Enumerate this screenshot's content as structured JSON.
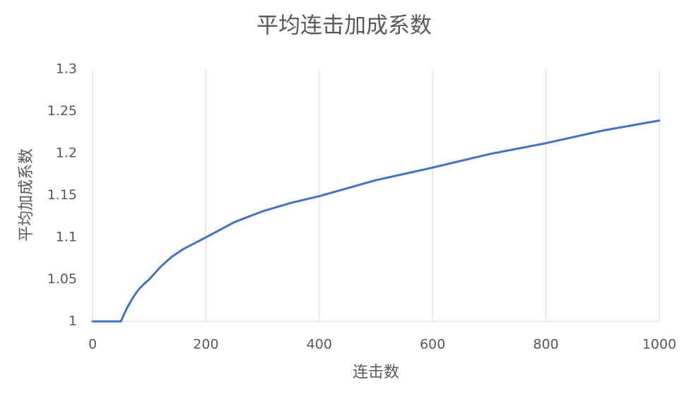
{
  "chart_data": {
    "type": "line",
    "title": "平均连击加成系数",
    "x_label": "连击数",
    "y_label": "平均加成系数",
    "x": [
      0,
      50,
      60,
      70,
      80,
      90,
      100,
      120,
      140,
      160,
      180,
      200,
      250,
      300,
      350,
      400,
      500,
      600,
      700,
      800,
      900,
      1000
    ],
    "values": [
      1,
      1,
      1.015,
      1.027,
      1.037,
      1.044,
      1.05,
      1.065,
      1.077,
      1.086,
      1.093,
      1.1,
      1.118,
      1.131,
      1.141,
      1.149,
      1.168,
      1.183,
      1.199,
      1.212,
      1.227,
      1.239
    ],
    "color": "#4472c4",
    "xlim": [
      0,
      1000
    ],
    "xticks": [
      0,
      200,
      400,
      600,
      800,
      1000
    ],
    "ylim": [
      1,
      1.3
    ],
    "yticks": [
      1,
      1.05,
      1.1,
      1.15,
      1.2,
      1.25,
      1.3
    ],
    "grid": "x"
  }
}
